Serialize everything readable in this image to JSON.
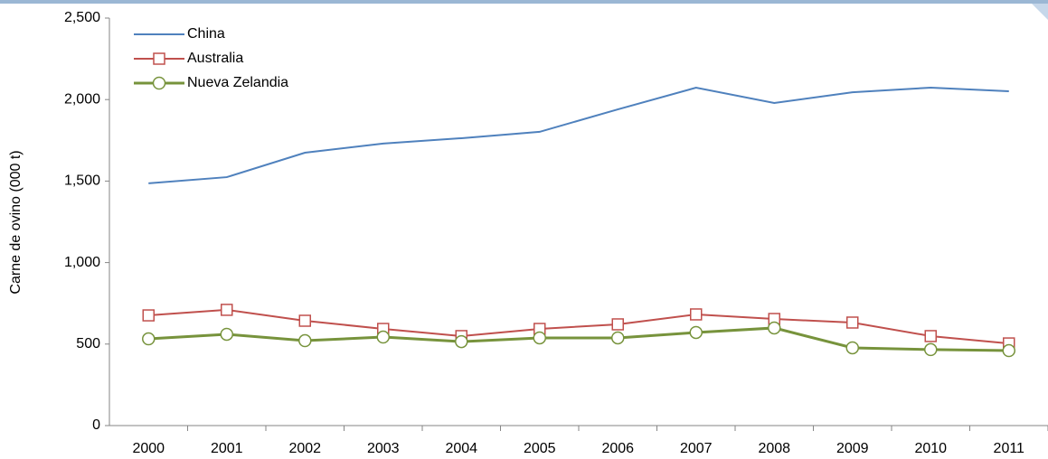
{
  "chart_data": {
    "type": "line",
    "ylabel": "Carne de ovino (000 t)",
    "categories": [
      "2000",
      "2001",
      "2002",
      "2003",
      "2004",
      "2005",
      "2006",
      "2007",
      "2008",
      "2009",
      "2010",
      "2011"
    ],
    "series": [
      {
        "name": "China",
        "color": "#4f81bd",
        "marker": "none",
        "values": [
          1486,
          1524,
          1674,
          1730,
          1763,
          1802,
          1940,
          2073,
          1979,
          2045,
          2073,
          2051
        ]
      },
      {
        "name": "Australia",
        "color": "#c0504d",
        "marker": "square",
        "values": [
          676,
          710,
          643,
          593,
          549,
          593,
          621,
          682,
          654,
          632,
          549,
          504
        ]
      },
      {
        "name": "Nueva Zelandia",
        "color": "#77933c",
        "marker": "circle",
        "values": [
          532,
          560,
          521,
          543,
          515,
          538,
          538,
          571,
          599,
          477,
          466,
          460
        ]
      }
    ],
    "ylim": [
      0,
      2500
    ],
    "yticks": [
      0,
      500,
      {
        "value": 1000,
        "label": "1,000"
      },
      {
        "value": 1500,
        "label": "1,500"
      },
      {
        "value": 2000,
        "label": "2,000"
      },
      {
        "value": 2500,
        "label": "2,500"
      }
    ],
    "grid": false,
    "legend": "upper-left"
  }
}
